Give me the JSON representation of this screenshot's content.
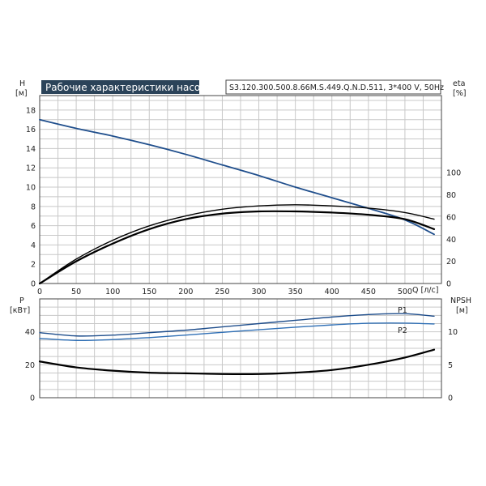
{
  "chart_data": [
    {
      "type": "line",
      "title": "Рабочие характеристики насоса",
      "subtitle": "S3.120.300.500.8.66M.S.449.Q.N.D.511, 3*400 V, 50Hz",
      "xlabel": "Q [л/с]",
      "ylabel_left": [
        "H",
        "[м]"
      ],
      "ylabel_right": [
        "eta",
        "[%]"
      ],
      "xlim": [
        0,
        550
      ],
      "ylim": [
        0,
        19.5
      ],
      "ylim_right": [
        0,
        169.5
      ],
      "grid": true,
      "xticks": [
        "0",
        "50",
        "100",
        "150",
        "200",
        "250",
        "300",
        "350",
        "400",
        "450",
        "500"
      ],
      "yticks": [
        "0",
        "2",
        "4",
        "6",
        "8",
        "10",
        "12",
        "14",
        "16",
        "18"
      ],
      "yticks_right": [
        "0",
        "20",
        "40",
        "60",
        "80",
        "100"
      ],
      "series": [
        {
          "color": "#1f4e8c",
          "axis": "left",
          "x": [
            0,
            50,
            100,
            150,
            200,
            250,
            300,
            350,
            400,
            450,
            500,
            540
          ],
          "y": [
            17.0,
            16.1,
            15.3,
            14.4,
            13.4,
            12.3,
            11.2,
            10.0,
            8.9,
            7.8,
            6.6,
            5.1
          ]
        },
        {
          "color": "#000000",
          "axis": "right",
          "x": [
            0,
            50,
            100,
            150,
            200,
            250,
            300,
            350,
            400,
            450,
            500,
            540
          ],
          "y": [
            0,
            20,
            36,
            49,
            58,
            63,
            65,
            65,
            64,
            62,
            58,
            49
          ]
        },
        {
          "color": "#000000",
          "axis": "right",
          "x": [
            0,
            50,
            100,
            150,
            200,
            250,
            300,
            350,
            400,
            450,
            500,
            540
          ],
          "y": [
            0,
            22,
            39,
            52,
            61,
            67,
            70,
            71,
            70,
            68,
            64,
            58
          ]
        }
      ]
    },
    {
      "type": "line",
      "xlim": [
        0,
        550
      ],
      "ylim": [
        0,
        60
      ],
      "ylim_right": [
        0,
        15
      ],
      "ylabel_left": [
        "P",
        "[кВт]"
      ],
      "ylabel_right": [
        "NPSH",
        "[м]"
      ],
      "grid": true,
      "yticks": [
        "0",
        "20",
        "40"
      ],
      "yticks_right": [
        "0",
        "5",
        "10"
      ],
      "series": [
        {
          "name": "P1",
          "color": "#1f4e8c",
          "axis": "left",
          "x": [
            0,
            50,
            100,
            150,
            200,
            250,
            300,
            350,
            400,
            450,
            500,
            540
          ],
          "y": [
            39.5,
            37.5,
            38.0,
            39.5,
            41.0,
            43.0,
            45.0,
            47.0,
            49.0,
            50.5,
            51.0,
            49.5
          ]
        },
        {
          "name": "P2",
          "color": "#2f6fb5",
          "axis": "left",
          "x": [
            0,
            50,
            100,
            150,
            200,
            250,
            300,
            350,
            400,
            450,
            500,
            540
          ],
          "y": [
            36.0,
            34.8,
            35.3,
            36.5,
            38.0,
            39.7,
            41.3,
            42.8,
            44.2,
            45.2,
            45.3,
            44.8
          ]
        },
        {
          "color": "#000000",
          "axis": "right",
          "x": [
            0,
            50,
            100,
            150,
            200,
            250,
            300,
            350,
            400,
            450,
            500,
            540
          ],
          "y": [
            5.5,
            4.6,
            4.1,
            3.8,
            3.7,
            3.6,
            3.6,
            3.8,
            4.2,
            5.0,
            6.1,
            7.3
          ]
        }
      ]
    }
  ]
}
